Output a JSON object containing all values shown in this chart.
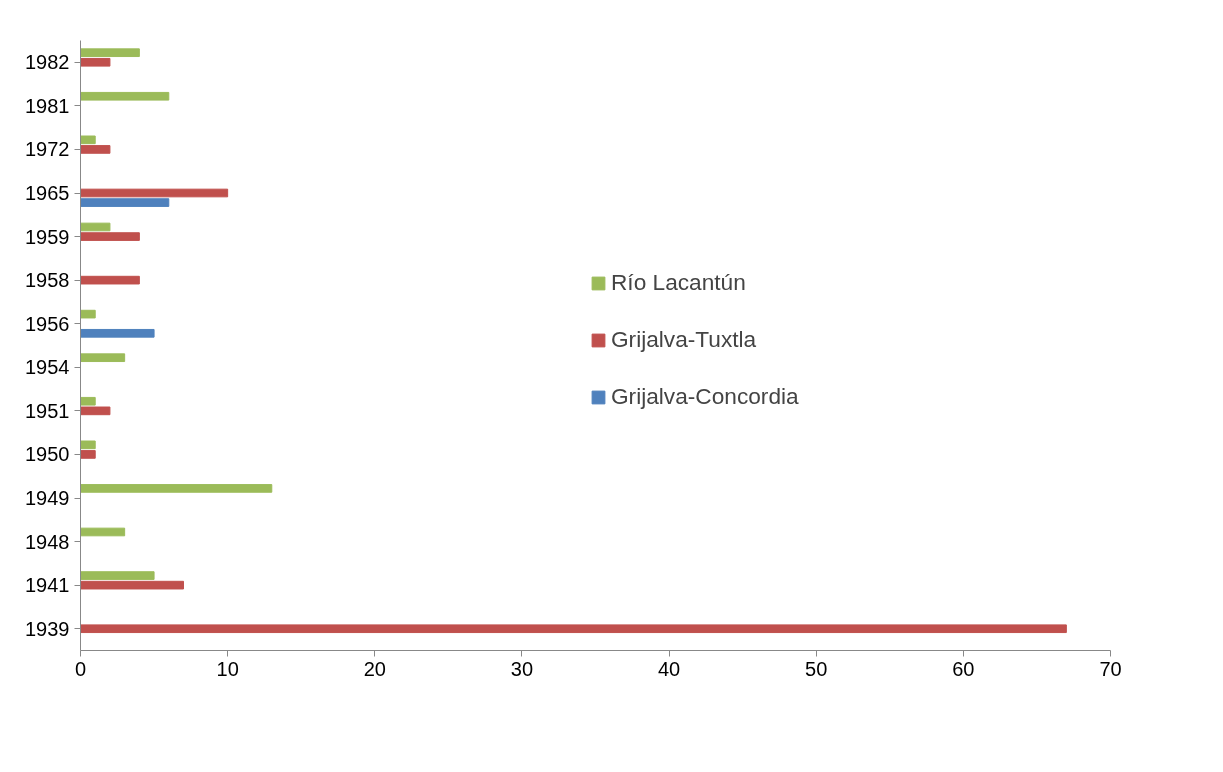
{
  "chart_data": {
    "type": "bar",
    "orientation": "horizontal",
    "categories": [
      "1982",
      "1981",
      "1972",
      "1965",
      "1959",
      "1958",
      "1956",
      "1954",
      "1951",
      "1950",
      "1949",
      "1948",
      "1941",
      "1939"
    ],
    "series": [
      {
        "name": "Río Lacantún",
        "color": "#9bbb59",
        "values": [
          4,
          6,
          1,
          null,
          2,
          null,
          1,
          3,
          1,
          1,
          13,
          3,
          5,
          null
        ]
      },
      {
        "name": "Grijalva-Tuxtla",
        "color": "#c0504d",
        "values": [
          2,
          null,
          2,
          10,
          4,
          4,
          null,
          null,
          2,
          1,
          null,
          null,
          7,
          67
        ]
      },
      {
        "name": "Grijalva-Concordia",
        "color": "#4f81bd",
        "values": [
          null,
          null,
          null,
          6,
          null,
          null,
          5,
          null,
          null,
          null,
          null,
          null,
          null,
          null
        ]
      }
    ],
    "xlim": [
      0,
      70
    ],
    "xticks": [
      0,
      10,
      20,
      30,
      40,
      50,
      60,
      70
    ],
    "grid": false,
    "legend": "right"
  }
}
